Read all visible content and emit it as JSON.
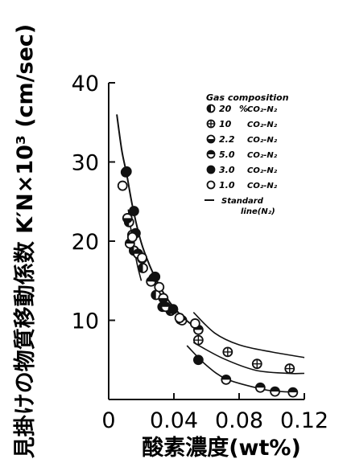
{
  "chart_data": {
    "type": "scatter",
    "ylabel": "見掛けの物質移動係数 K′N×10³ (cm/sec)",
    "xlabel": "酸素濃度(wt%)",
    "xlim": [
      0,
      0.12
    ],
    "ylim": [
      0,
      40
    ],
    "x_ticks": [
      "0",
      "0.04",
      "0.08",
      "0.12"
    ],
    "y_ticks": [
      "10",
      "20",
      "30",
      "40"
    ],
    "grid": false,
    "legend_position": "top-right",
    "legend_title": "Gas composition",
    "series": [
      {
        "name": "20 %CO2-N2",
        "marker": "half-left",
        "number": "20",
        "unit": "%",
        "gas": "CO₂-N₂",
        "x": [
          0.0105,
          0.0125,
          0.0155,
          0.021,
          0.029,
          0.033,
          0.038,
          0.044
        ],
        "y": [
          28.7,
          22.4,
          18.8,
          16.6,
          13.2,
          11.7,
          11.2,
          10.1
        ]
      },
      {
        "name": "10 CO2-N2",
        "marker": "crossed",
        "number": "10",
        "unit": "",
        "gas": "CO₂-N₂",
        "x": [
          0.055,
          0.073,
          0.091,
          0.111
        ],
        "y": [
          7.5,
          6.0,
          4.5,
          3.9
        ]
      },
      {
        "name": "2.2 CO2-N2",
        "marker": "half-bottom",
        "number": "2.2",
        "unit": "",
        "gas": "CO₂-N₂",
        "x": [
          0.0115,
          0.0145,
          0.0205,
          0.0275,
          0.0335
        ],
        "y": [
          22.9,
          20.8,
          17.8,
          15.3,
          12.8
        ]
      },
      {
        "name": "5.0 CO2-N2",
        "marker": "half-top",
        "number": "5.0",
        "unit": "",
        "gas": "CO₂-N₂",
        "x": [
          0.013,
          0.018,
          0.026,
          0.035,
          0.045,
          0.055
        ],
        "y": [
          19.7,
          18.4,
          14.9,
          11.7,
          10.0,
          8.8
        ]
      },
      {
        "name": "3.0 CO2-N2",
        "marker": "filled",
        "number": "3.0",
        "unit": "",
        "gas": "CO₂-N₂",
        "x": [
          0.011,
          0.0155,
          0.0165,
          0.0285,
          0.0395,
          0.055
        ],
        "y": [
          28.8,
          23.8,
          21.0,
          15.5,
          11.4,
          5.0
        ]
      },
      {
        "name": "1.0 CO2-N2",
        "marker": "open",
        "number": "1.0",
        "unit": "",
        "gas": "CO₂-N₂",
        "x": [
          0.0085,
          0.0145,
          0.0205,
          0.031,
          0.0435,
          0.053
        ],
        "y": [
          27.0,
          20.5,
          17.9,
          14.2,
          10.3,
          9.6
        ]
      }
    ],
    "half_filled_points": {
      "x": [
        0.072,
        0.093,
        0.102,
        0.113
      ],
      "y": [
        2.5,
        1.5,
        1.0,
        0.9
      ]
    },
    "standard_line": {
      "name": "Standard line(N₂)",
      "legend_label_1": "Standard",
      "legend_label_2": "line(N₂)",
      "x": [
        0.005,
        0.008,
        0.011,
        0.015,
        0.02,
        0.025,
        0.03,
        0.035,
        0.04,
        0.045,
        0.05,
        0.055
      ],
      "y": [
        36.0,
        31.5,
        28.5,
        24.0,
        19.8,
        17.0,
        14.8,
        13.0,
        11.6,
        10.5,
        9.6,
        9.0
      ]
    },
    "extra_curves": [
      {
        "x": [
          0.012,
          0.014,
          0.016,
          0.018,
          0.02
        ],
        "y": [
          24.0,
          21.0,
          18.6,
          16.6,
          15.0
        ]
      },
      {
        "x": [
          0.052,
          0.07,
          0.09,
          0.11,
          0.12
        ],
        "y": [
          7.2,
          5.2,
          3.7,
          3.3,
          3.3
        ]
      },
      {
        "x": [
          0.052,
          0.065,
          0.08,
          0.1,
          0.12
        ],
        "y": [
          11.0,
          8.4,
          6.9,
          6.0,
          5.3
        ]
      },
      {
        "x": [
          0.048,
          0.06,
          0.072,
          0.09,
          0.1,
          0.115
        ],
        "y": [
          6.8,
          4.3,
          2.6,
          1.5,
          1.1,
          0.9
        ]
      }
    ]
  }
}
